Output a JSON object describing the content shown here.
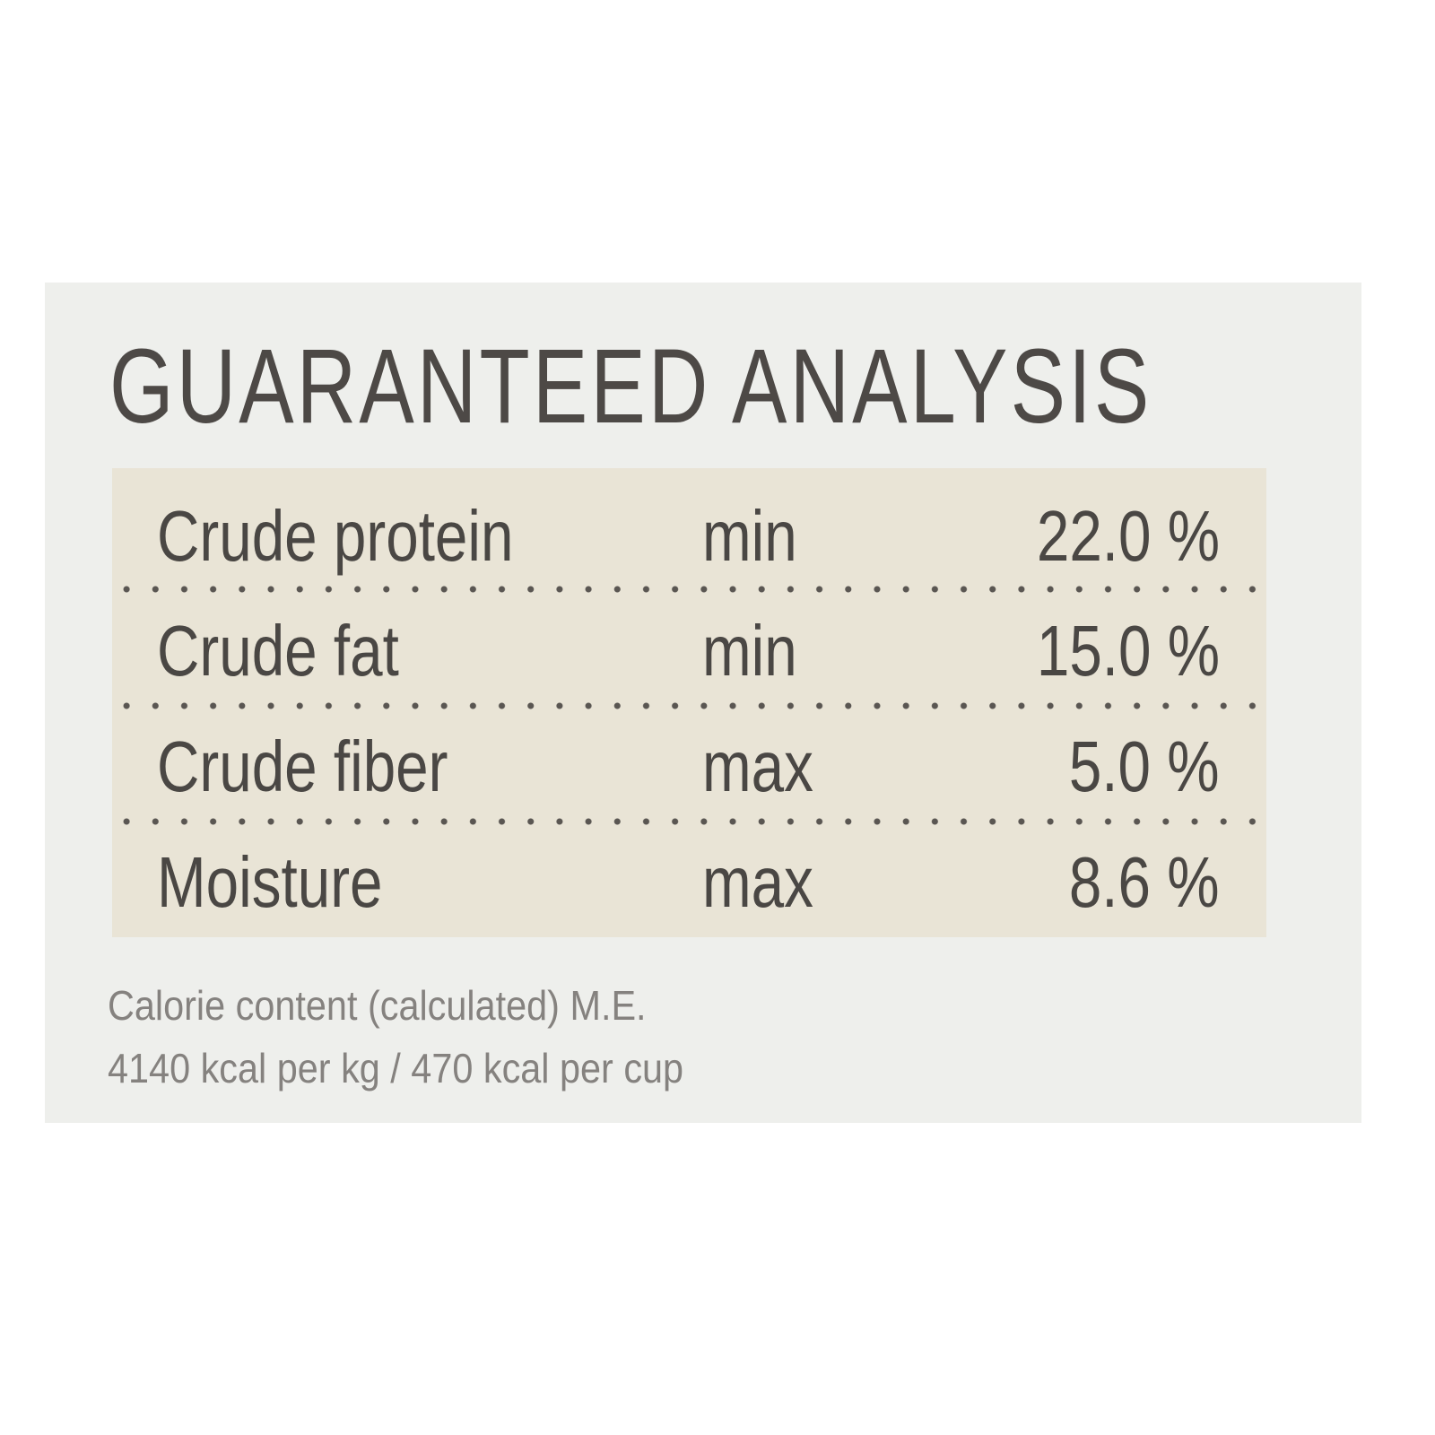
{
  "title": "GUARANTEED ANALYSIS",
  "rows": [
    {
      "nutrient": "Crude protein",
      "qualifier": "min",
      "value": "22.0 %"
    },
    {
      "nutrient": "Crude fat",
      "qualifier": "min",
      "value": "15.0 %"
    },
    {
      "nutrient": "Crude fiber",
      "qualifier": "max",
      "value": "5.0 %"
    },
    {
      "nutrient": "Moisture",
      "qualifier": "max",
      "value": "8.6 %"
    }
  ],
  "calorie_note": {
    "line1": "Calorie content (calculated) M.E.",
    "line2": "4140 kcal per kg / 470 kcal per cup"
  },
  "colors": {
    "panel": "#eeefec",
    "table_bg": "#e9e4d6",
    "text": "#4a4744",
    "note_text": "#85827f"
  }
}
